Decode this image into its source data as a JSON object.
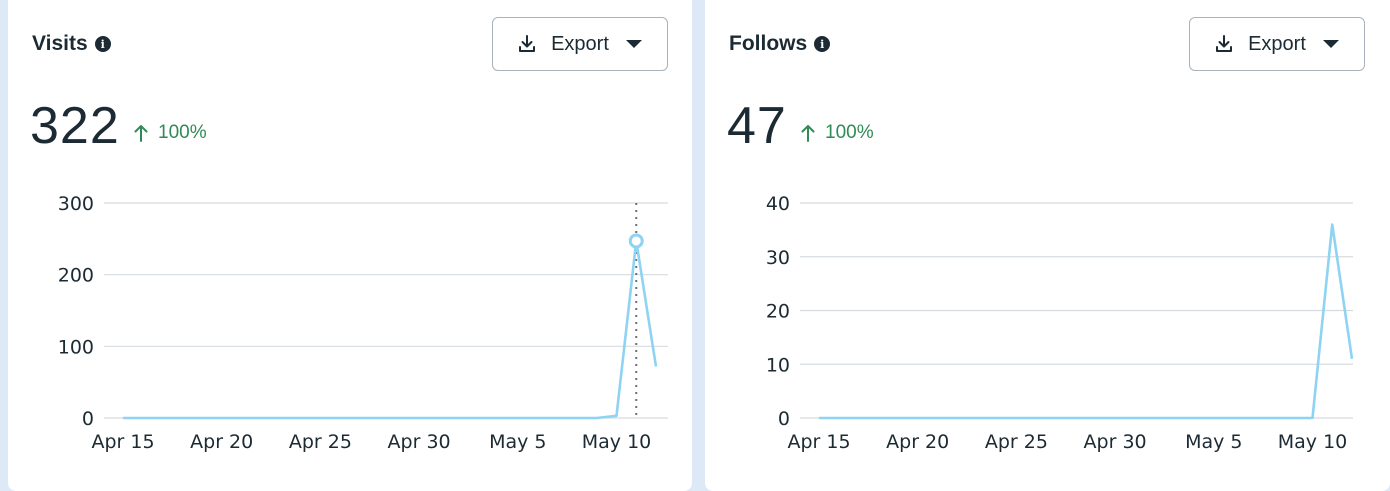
{
  "cards": [
    {
      "title": "Visits",
      "export_label": "Export",
      "value": "322",
      "delta": "100%",
      "info_icon": "info-icon",
      "colors": {
        "line": "#8fd3f2",
        "grid": "#d6dbe0",
        "delta": "#2f8a55",
        "cursor": "#6b6f73"
      }
    },
    {
      "title": "Follows",
      "export_label": "Export",
      "value": "47",
      "delta": "100%",
      "info_icon": "info-icon",
      "colors": {
        "line": "#8fd3f2",
        "grid": "#d6dbe0",
        "delta": "#2f8a55"
      }
    }
  ],
  "chart_data": [
    {
      "type": "line",
      "title": "Visits",
      "x_ticks": [
        "Apr 15",
        "Apr 20",
        "Apr 25",
        "Apr 30",
        "May 5",
        "May 10"
      ],
      "x": [
        "Apr 15",
        "Apr 16",
        "Apr 17",
        "Apr 18",
        "Apr 19",
        "Apr 20",
        "Apr 21",
        "Apr 22",
        "Apr 23",
        "Apr 24",
        "Apr 25",
        "Apr 26",
        "Apr 27",
        "Apr 28",
        "Apr 29",
        "Apr 30",
        "May 1",
        "May 2",
        "May 3",
        "May 4",
        "May 5",
        "May 6",
        "May 7",
        "May 8",
        "May 9",
        "May 10",
        "May 11",
        "May 12"
      ],
      "series": [
        {
          "values": [
            0,
            0,
            0,
            0,
            0,
            0,
            0,
            0,
            0,
            0,
            0,
            0,
            0,
            0,
            0,
            0,
            0,
            0,
            0,
            0,
            0,
            0,
            0,
            0,
            0,
            3,
            247,
            72
          ]
        }
      ],
      "y_ticks": [
        0,
        100,
        200,
        300
      ],
      "ylim": [
        0,
        300
      ],
      "grid": true,
      "highlight_x": "May 11"
    },
    {
      "type": "line",
      "title": "Follows",
      "x_ticks": [
        "Apr 15",
        "Apr 20",
        "Apr 25",
        "Apr 30",
        "May 5",
        "May 10"
      ],
      "x": [
        "Apr 15",
        "Apr 16",
        "Apr 17",
        "Apr 18",
        "Apr 19",
        "Apr 20",
        "Apr 21",
        "Apr 22",
        "Apr 23",
        "Apr 24",
        "Apr 25",
        "Apr 26",
        "Apr 27",
        "Apr 28",
        "Apr 29",
        "Apr 30",
        "May 1",
        "May 2",
        "May 3",
        "May 4",
        "May 5",
        "May 6",
        "May 7",
        "May 8",
        "May 9",
        "May 10",
        "May 11",
        "May 12"
      ],
      "series": [
        {
          "values": [
            0,
            0,
            0,
            0,
            0,
            0,
            0,
            0,
            0,
            0,
            0,
            0,
            0,
            0,
            0,
            0,
            0,
            0,
            0,
            0,
            0,
            0,
            0,
            0,
            0,
            0,
            36,
            11
          ]
        }
      ],
      "y_ticks": [
        0,
        10,
        20,
        30,
        40
      ],
      "ylim": [
        0,
        40
      ],
      "grid": true
    }
  ]
}
